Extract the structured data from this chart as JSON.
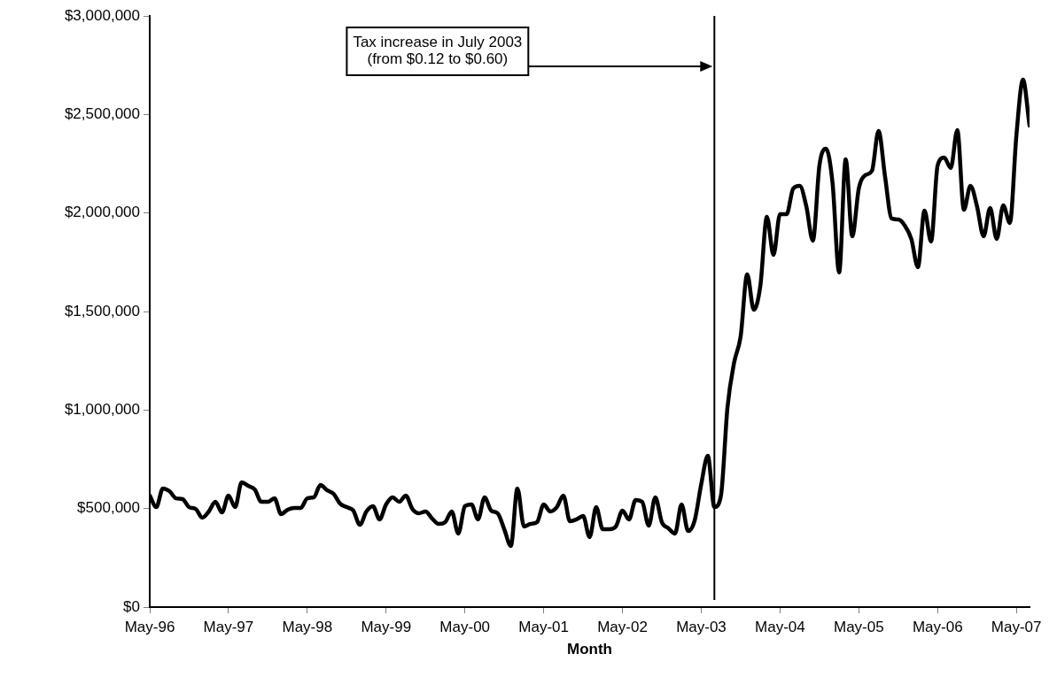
{
  "chart_data": {
    "type": "line",
    "xlabel": "Month",
    "x": [
      "1996-05",
      "1996-06",
      "1996-07",
      "1996-08",
      "1996-09",
      "1996-10",
      "1996-11",
      "1996-12",
      "1997-01",
      "1997-02",
      "1997-03",
      "1997-04",
      "1997-05",
      "1997-06",
      "1997-07",
      "1997-08",
      "1997-09",
      "1997-10",
      "1997-11",
      "1997-12",
      "1998-01",
      "1998-02",
      "1998-03",
      "1998-04",
      "1998-05",
      "1998-06",
      "1998-07",
      "1998-08",
      "1998-09",
      "1998-10",
      "1998-11",
      "1998-12",
      "1999-01",
      "1999-02",
      "1999-03",
      "1999-04",
      "1999-05",
      "1999-06",
      "1999-07",
      "1999-08",
      "1999-09",
      "1999-10",
      "1999-11",
      "1999-12",
      "2000-01",
      "2000-02",
      "2000-03",
      "2000-04",
      "2000-05",
      "2000-06",
      "2000-07",
      "2000-08",
      "2000-09",
      "2000-10",
      "2000-11",
      "2000-12",
      "2001-01",
      "2001-02",
      "2001-03",
      "2001-04",
      "2001-05",
      "2001-06",
      "2001-07",
      "2001-08",
      "2001-09",
      "2001-10",
      "2001-11",
      "2001-12",
      "2002-01",
      "2002-02",
      "2002-03",
      "2002-04",
      "2002-05",
      "2002-06",
      "2002-07",
      "2002-08",
      "2002-09",
      "2002-10",
      "2002-11",
      "2002-12",
      "2003-01",
      "2003-02",
      "2003-03",
      "2003-04",
      "2003-05",
      "2003-06",
      "2003-07",
      "2003-08",
      "2003-09",
      "2003-10",
      "2003-11",
      "2003-12",
      "2004-01",
      "2004-02",
      "2004-03",
      "2004-04",
      "2004-05",
      "2004-06",
      "2004-07",
      "2004-08",
      "2004-09",
      "2004-10",
      "2004-11",
      "2004-12",
      "2005-01",
      "2005-02",
      "2005-03",
      "2005-04",
      "2005-05",
      "2005-06",
      "2005-07",
      "2005-08",
      "2005-09",
      "2005-10",
      "2005-11",
      "2005-12",
      "2006-01",
      "2006-02",
      "2006-03",
      "2006-04",
      "2006-05",
      "2006-06",
      "2006-07",
      "2006-08",
      "2006-09",
      "2006-10",
      "2006-11",
      "2006-12",
      "2007-01",
      "2007-02",
      "2007-03",
      "2007-04",
      "2007-05",
      "2007-06",
      "2007-07"
    ],
    "series": [
      {
        "color": "#000000",
        "values": [
          566000,
          507000,
          602000,
          588000,
          552000,
          548000,
          507000,
          498000,
          454000,
          485000,
          534000,
          480000,
          566000,
          507000,
          633000,
          615000,
          597000,
          534000,
          534000,
          552000,
          472000,
          494000,
          503000,
          503000,
          552000,
          557000,
          620000,
          593000,
          575000,
          525000,
          507000,
          490000,
          418000,
          485000,
          512000,
          445000,
          521000,
          557000,
          534000,
          566000,
          498000,
          476000,
          485000,
          450000,
          422000,
          431000,
          485000,
          373000,
          512000,
          521000,
          445000,
          557000,
          490000,
          476000,
          395000,
          310000,
          602000,
          409000,
          422000,
          431000,
          521000,
          485000,
          507000,
          566000,
          436000,
          445000,
          463000,
          355000,
          507000,
          395000,
          395000,
          409000,
          490000,
          445000,
          543000,
          534000,
          413000,
          557000,
          431000,
          400000,
          373000,
          521000,
          386000,
          440000,
          624000,
          768000,
          507000,
          566000,
          1015000,
          1240000,
          1374000,
          1689000,
          1509000,
          1630000,
          1980000,
          1787000,
          1994000,
          1994000,
          2124000,
          2138000,
          2034000,
          1859000,
          2241000,
          2326000,
          2151000,
          1698000,
          2272000,
          1882000,
          2124000,
          2192000,
          2214000,
          2416000,
          2183000,
          1972000,
          1967000,
          1936000,
          1868000,
          1725000,
          2012000,
          1855000,
          2241000,
          2281000,
          2228000,
          2421000,
          2016000,
          2138000,
          2034000,
          1882000,
          2025000,
          1868000,
          2039000,
          1949000,
          2394000,
          2677000,
          2443000
        ]
      }
    ],
    "xlim": [
      "1996-05",
      "2007-07"
    ],
    "xticks": [
      {
        "value": "1996-05",
        "label": "May-96"
      },
      {
        "value": "1997-05",
        "label": "May-97"
      },
      {
        "value": "1998-05",
        "label": "May-98"
      },
      {
        "value": "1999-05",
        "label": "May-99"
      },
      {
        "value": "2000-05",
        "label": "May-00"
      },
      {
        "value": "2001-05",
        "label": "May-01"
      },
      {
        "value": "2002-05",
        "label": "May-02"
      },
      {
        "value": "2003-05",
        "label": "May-03"
      },
      {
        "value": "2004-05",
        "label": "May-04"
      },
      {
        "value": "2005-05",
        "label": "May-05"
      },
      {
        "value": "2006-05",
        "label": "May-06"
      },
      {
        "value": "2007-05",
        "label": "May-07"
      }
    ],
    "ylim": [
      0,
      3000000
    ],
    "yticks": [
      {
        "value": 0,
        "label": "$0"
      },
      {
        "value": 500000,
        "label": "$500,000"
      },
      {
        "value": 1000000,
        "label": "$1,000,000"
      },
      {
        "value": 1500000,
        "label": "$1,500,000"
      },
      {
        "value": 2000000,
        "label": "$2,000,000"
      },
      {
        "value": 2500000,
        "label": "$2,500,000"
      },
      {
        "value": 3000000,
        "label": "$3,000,000"
      }
    ],
    "ref_lines": [
      {
        "axis": "x",
        "value": "2003-07",
        "color": "#000000",
        "label": "Tax increase in July 2003\n(from $0.12 to $0.60)"
      }
    ],
    "grid": false,
    "legend": false,
    "marker": "none",
    "line_style": "solid"
  }
}
